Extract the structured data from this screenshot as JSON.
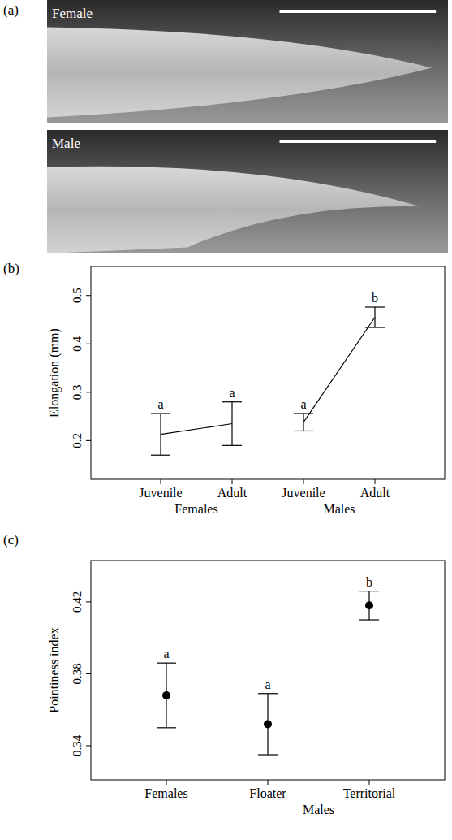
{
  "chart_data": [
    {
      "panel": "(a)",
      "type": "image",
      "images": [
        "Female",
        "Male"
      ]
    },
    {
      "panel": "(b)",
      "type": "line",
      "y_label": "Elongation (mm)",
      "ylim": [
        0.12,
        0.56
      ],
      "yticks": [
        0.2,
        0.3,
        0.4,
        0.5
      ],
      "marker": "none",
      "groups": [
        {
          "name": "Females",
          "categories": [
            "Juvenile",
            "Adult"
          ],
          "values": [
            0.213,
            0.235
          ],
          "errors": [
            0.043,
            0.045
          ],
          "letters": [
            "a",
            "a"
          ]
        },
        {
          "name": "Males",
          "categories": [
            "Juvenile",
            "Adult"
          ],
          "values": [
            0.238,
            0.455
          ],
          "errors": [
            0.018,
            0.021
          ],
          "letters": [
            "a",
            "b"
          ]
        }
      ]
    },
    {
      "panel": "(c)",
      "type": "scatter",
      "y_label": "Pointiness index",
      "ylim": [
        0.321,
        0.443
      ],
      "yticks": [
        0.34,
        0.38,
        0.42
      ],
      "marker": "circle",
      "categories": [
        "Females",
        "Floater",
        "Territorial"
      ],
      "values": [
        0.368,
        0.352,
        0.418
      ],
      "errors": [
        0.018,
        0.017,
        0.008
      ],
      "letters": [
        "a",
        "a",
        "b"
      ],
      "category_groups": [
        {
          "name": "Males",
          "members": [
            "Floater",
            "Territorial"
          ]
        }
      ]
    }
  ]
}
